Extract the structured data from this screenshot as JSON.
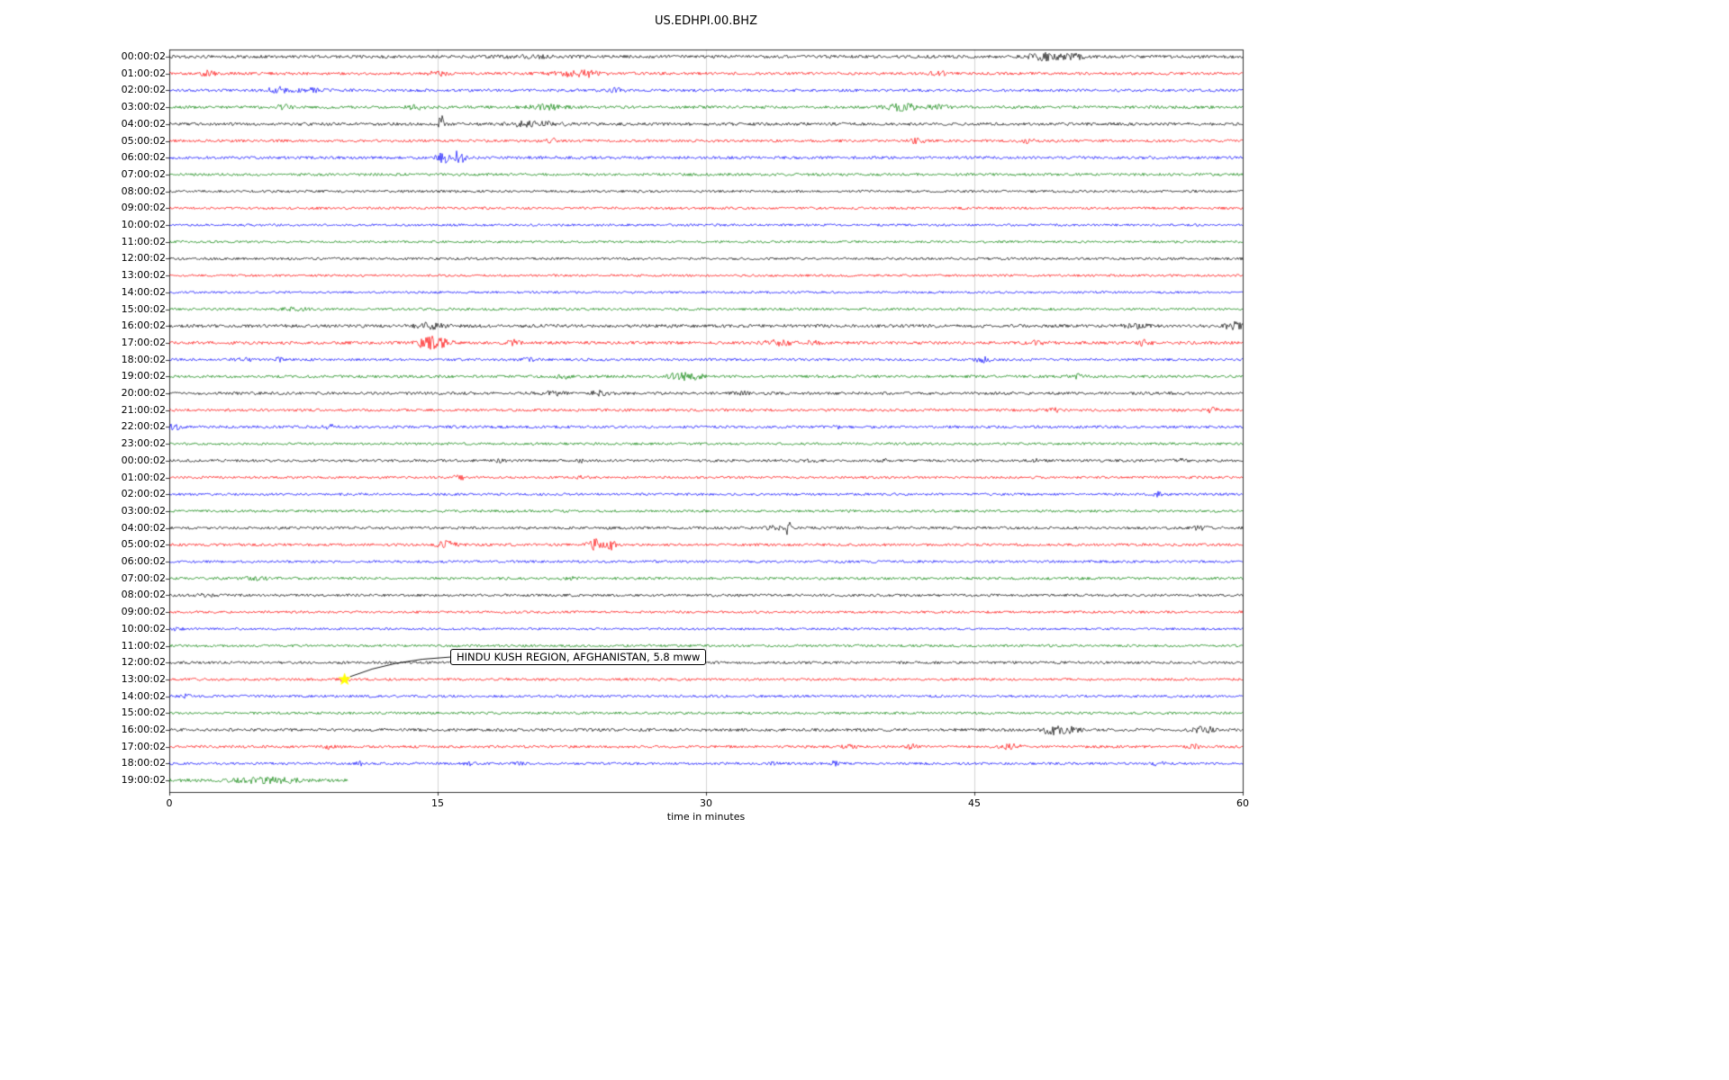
{
  "chart_data": {
    "type": "line",
    "variant": "seismogram-helicorder-dayplot",
    "title": "US.EDHPI.00.BHZ",
    "xlabel": "time in minutes",
    "xlim": [
      0,
      60
    ],
    "xticks": [
      0,
      15,
      30,
      45,
      60
    ],
    "grid": {
      "vertical_minutes": [
        15,
        30,
        45
      ],
      "color": "#c8c8c8"
    },
    "frame_color": "#000000",
    "trace_colors": {
      "black": "#000000",
      "red": "#ff0000",
      "blue": "#0000ff",
      "green": "#008000"
    },
    "annotation": {
      "text": "HINDU KUSH REGION, AFGHANISTAN, 5.8 mww",
      "marker": "star",
      "marker_color": "#ffff00",
      "row_index": 37,
      "x_minutes": 9.8
    },
    "events_format": "[minute, amplitude_px, width_min]",
    "rows": [
      {
        "label": "00:00:02",
        "color": "black",
        "amp": 1.7,
        "events": [
          [
            20,
            1,
            2
          ],
          [
            48.8,
            3.5,
            0.9
          ],
          [
            50.5,
            2.5,
            0.7
          ]
        ]
      },
      {
        "label": "01:00:02",
        "color": "red",
        "amp": 1.6,
        "events": [
          [
            2.2,
            2.5,
            0.4
          ],
          [
            15,
            2.2,
            0.5
          ],
          [
            22.5,
            2.5,
            1.2
          ],
          [
            23.5,
            2,
            0.6
          ],
          [
            43,
            2.2,
            0.5
          ]
        ]
      },
      {
        "label": "02:00:02",
        "color": "blue",
        "amp": 1.6,
        "events": [
          [
            6,
            3.5,
            0.5
          ],
          [
            7.8,
            2,
            0.8
          ],
          [
            25,
            2.5,
            0.4
          ]
        ]
      },
      {
        "label": "03:00:02",
        "color": "green",
        "amp": 1.6,
        "events": [
          [
            6.5,
            2,
            0.6
          ],
          [
            13.8,
            3,
            0.4
          ],
          [
            21,
            2.5,
            1
          ],
          [
            41,
            3.5,
            0.9
          ],
          [
            43,
            1.8,
            0.6
          ]
        ]
      },
      {
        "label": "04:00:02",
        "color": "black",
        "amp": 1.7,
        "events": [
          [
            15.2,
            11,
            0.12
          ],
          [
            19.8,
            2.2,
            1
          ],
          [
            21.5,
            1.8,
            0.8
          ]
        ]
      },
      {
        "label": "05:00:02",
        "color": "red",
        "amp": 1.5,
        "events": [
          [
            21.4,
            2.2,
            0.3
          ],
          [
            41.8,
            2.2,
            0.5
          ],
          [
            48,
            2.2,
            0.4
          ]
        ]
      },
      {
        "label": "06:00:02",
        "color": "blue",
        "amp": 1.6,
        "events": [
          [
            15.3,
            6,
            0.3
          ],
          [
            16.2,
            9,
            0.3
          ]
        ]
      },
      {
        "label": "07:00:02",
        "color": "green",
        "amp": 1.5,
        "events": []
      },
      {
        "label": "08:00:02",
        "color": "black",
        "amp": 1.4,
        "events": []
      },
      {
        "label": "09:00:02",
        "color": "red",
        "amp": 1.4,
        "events": []
      },
      {
        "label": "10:00:02",
        "color": "blue",
        "amp": 1.3,
        "events": []
      },
      {
        "label": "11:00:02",
        "color": "green",
        "amp": 1.3,
        "events": []
      },
      {
        "label": "12:00:02",
        "color": "black",
        "amp": 1.4,
        "events": []
      },
      {
        "label": "13:00:02",
        "color": "red",
        "amp": 1.3,
        "events": []
      },
      {
        "label": "14:00:02",
        "color": "blue",
        "amp": 1.3,
        "events": []
      },
      {
        "label": "15:00:02",
        "color": "green",
        "amp": 1.4,
        "events": [
          [
            7,
            1.2,
            1
          ]
        ]
      },
      {
        "label": "16:00:02",
        "color": "black",
        "amp": 1.8,
        "events": [
          [
            14.5,
            3,
            0.8
          ],
          [
            54,
            3,
            0.6
          ],
          [
            59.5,
            3.5,
            0.5
          ]
        ]
      },
      {
        "label": "17:00:02",
        "color": "red",
        "amp": 1.7,
        "events": [
          [
            14.3,
            5,
            0.5
          ],
          [
            15.1,
            6,
            0.6
          ],
          [
            19.3,
            2.5,
            0.4
          ],
          [
            34,
            2.5,
            0.8
          ],
          [
            36,
            1.8,
            0.5
          ],
          [
            48.5,
            2.2,
            0.6
          ],
          [
            54.5,
            2.5,
            0.4
          ]
        ]
      },
      {
        "label": "18:00:02",
        "color": "blue",
        "amp": 1.5,
        "events": [
          [
            4.2,
            2.2,
            0.4
          ],
          [
            6.2,
            2.2,
            0.3
          ],
          [
            20,
            1.8,
            0.4
          ],
          [
            45.5,
            2.2,
            0.5
          ]
        ]
      },
      {
        "label": "19:00:02",
        "color": "green",
        "amp": 1.5,
        "events": [
          [
            22,
            1.8,
            0.4
          ],
          [
            28.5,
            4,
            0.7
          ],
          [
            29.5,
            2.5,
            0.5
          ],
          [
            50.8,
            2.2,
            0.4
          ]
        ]
      },
      {
        "label": "20:00:02",
        "color": "black",
        "amp": 1.6,
        "events": [
          [
            21.5,
            2.2,
            0.5
          ],
          [
            24,
            2.2,
            0.5
          ],
          [
            32,
            1.4,
            0.5
          ]
        ]
      },
      {
        "label": "21:00:02",
        "color": "red",
        "amp": 1.5,
        "events": [
          [
            49.5,
            2.2,
            0.3
          ],
          [
            58.3,
            2.2,
            0.4
          ]
        ]
      },
      {
        "label": "22:00:02",
        "color": "blue",
        "amp": 1.5,
        "events": [
          [
            0.3,
            3.5,
            0.3
          ],
          [
            9,
            1.8,
            0.4
          ],
          [
            37.2,
            3,
            0.2
          ]
        ]
      },
      {
        "label": "23:00:02",
        "color": "green",
        "amp": 1.4,
        "events": []
      },
      {
        "label": "00:00:02",
        "color": "black",
        "amp": 1.5,
        "events": [
          [
            18.5,
            1.3,
            0.3
          ],
          [
            23,
            1.3,
            0.3
          ],
          [
            36,
            1.3,
            0.3
          ],
          [
            40,
            1.3,
            0.3
          ],
          [
            48.5,
            1.3,
            0.3
          ],
          [
            56.5,
            1.8,
            0.3
          ]
        ]
      },
      {
        "label": "01:00:02",
        "color": "red",
        "amp": 1.4,
        "events": [
          [
            16.2,
            2.5,
            0.3
          ],
          [
            23,
            1.3,
            0.3
          ]
        ]
      },
      {
        "label": "02:00:02",
        "color": "blue",
        "amp": 1.4,
        "events": [
          [
            55.3,
            3,
            0.3
          ]
        ]
      },
      {
        "label": "03:00:02",
        "color": "green",
        "amp": 1.4,
        "events": []
      },
      {
        "label": "04:00:02",
        "color": "black",
        "amp": 1.5,
        "events": [
          [
            33.8,
            1.8,
            0.6
          ],
          [
            34.6,
            10,
            0.1
          ],
          [
            57.5,
            1.8,
            0.5
          ]
        ]
      },
      {
        "label": "05:00:02",
        "color": "red",
        "amp": 1.5,
        "events": [
          [
            15.5,
            3.5,
            0.5
          ],
          [
            23.8,
            6,
            0.4
          ],
          [
            24.7,
            5,
            0.3
          ]
        ]
      },
      {
        "label": "06:00:02",
        "color": "blue",
        "amp": 1.4,
        "events": []
      },
      {
        "label": "07:00:02",
        "color": "green",
        "amp": 1.5,
        "events": [
          [
            5,
            1.2,
            1
          ],
          [
            22.5,
            1.3,
            0.3
          ]
        ]
      },
      {
        "label": "08:00:02",
        "color": "black",
        "amp": 1.5,
        "events": [
          [
            2,
            1.3,
            0.5
          ]
        ]
      },
      {
        "label": "09:00:02",
        "color": "red",
        "amp": 1.4,
        "events": []
      },
      {
        "label": "10:00:02",
        "color": "blue",
        "amp": 1.3,
        "events": [
          [
            0.5,
            1.8,
            0.3
          ]
        ]
      },
      {
        "label": "11:00:02",
        "color": "green",
        "amp": 1.4,
        "events": []
      },
      {
        "label": "12:00:02",
        "color": "black",
        "amp": 1.5,
        "events": []
      },
      {
        "label": "13:00:02",
        "color": "red",
        "amp": 1.4,
        "events": [
          [
            9.8,
            1.8,
            0.3
          ]
        ]
      },
      {
        "label": "14:00:02",
        "color": "blue",
        "amp": 1.4,
        "events": [
          [
            1,
            1.8,
            0.3
          ]
        ]
      },
      {
        "label": "15:00:02",
        "color": "green",
        "amp": 1.4,
        "events": []
      },
      {
        "label": "16:00:02",
        "color": "black",
        "amp": 1.7,
        "events": [
          [
            49.3,
            4.5,
            0.5
          ],
          [
            50.2,
            3.5,
            0.6
          ],
          [
            57.5,
            2.5,
            0.4
          ],
          [
            58.2,
            2.2,
            0.3
          ]
        ]
      },
      {
        "label": "17:00:02",
        "color": "red",
        "amp": 1.5,
        "events": [
          [
            9,
            1.8,
            0.3
          ],
          [
            38,
            2.2,
            0.4
          ],
          [
            41.5,
            2.2,
            0.3
          ],
          [
            47,
            2.5,
            0.6
          ],
          [
            57.3,
            2.2,
            0.3
          ]
        ]
      },
      {
        "label": "18:00:02",
        "color": "blue",
        "amp": 1.4,
        "events": [
          [
            10.7,
            2.5,
            0.2
          ],
          [
            16.8,
            1.8,
            0.3
          ],
          [
            19.5,
            1.8,
            0.3
          ],
          [
            33.8,
            2.2,
            0.2
          ],
          [
            37.2,
            3.5,
            0.25
          ],
          [
            55.3,
            2.2,
            0.3
          ]
        ]
      },
      {
        "label": "19:00:02",
        "color": "green",
        "amp": 1.8,
        "end": 10,
        "events": [
          [
            5,
            2,
            1.5
          ],
          [
            6.5,
            1.6,
            1
          ]
        ]
      }
    ]
  }
}
